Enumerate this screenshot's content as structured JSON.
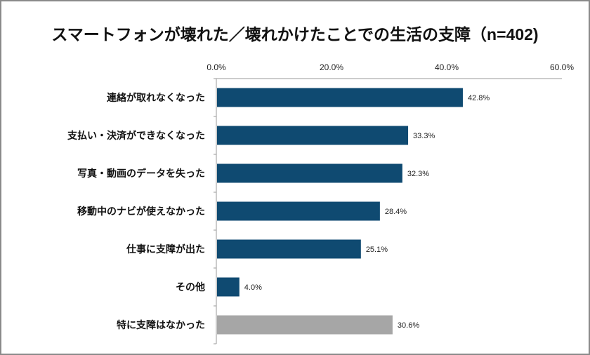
{
  "chart_data": {
    "type": "bar",
    "orientation": "horizontal",
    "title": "スマートフォンが壊れた／壊れかけたことでの生活の支障（n=402)",
    "categories": [
      "連絡が取れなくなった",
      "支払い・決済ができなくなった",
      "写真・動画のデータを失った",
      "移動中のナビが使えなかった",
      "仕事に支障が出た",
      "その他",
      "特に支障はなかった"
    ],
    "values": [
      42.8,
      33.3,
      32.3,
      28.4,
      25.1,
      4.0,
      30.6
    ],
    "value_labels": [
      "42.8%",
      "33.3%",
      "32.3%",
      "28.4%",
      "25.1%",
      "4.0%",
      "30.6%"
    ],
    "xlim": [
      0,
      60
    ],
    "x_ticks": [
      "0.0%",
      "20.0%",
      "40.0%",
      "60.0%"
    ],
    "x_tick_values": [
      0,
      20,
      40,
      60
    ],
    "axis_position": "top",
    "grid": false,
    "colors": [
      "#0f4a71",
      "#0f4a71",
      "#0f4a71",
      "#0f4a71",
      "#0f4a71",
      "#0f4a71",
      "#a6a6a6"
    ]
  }
}
